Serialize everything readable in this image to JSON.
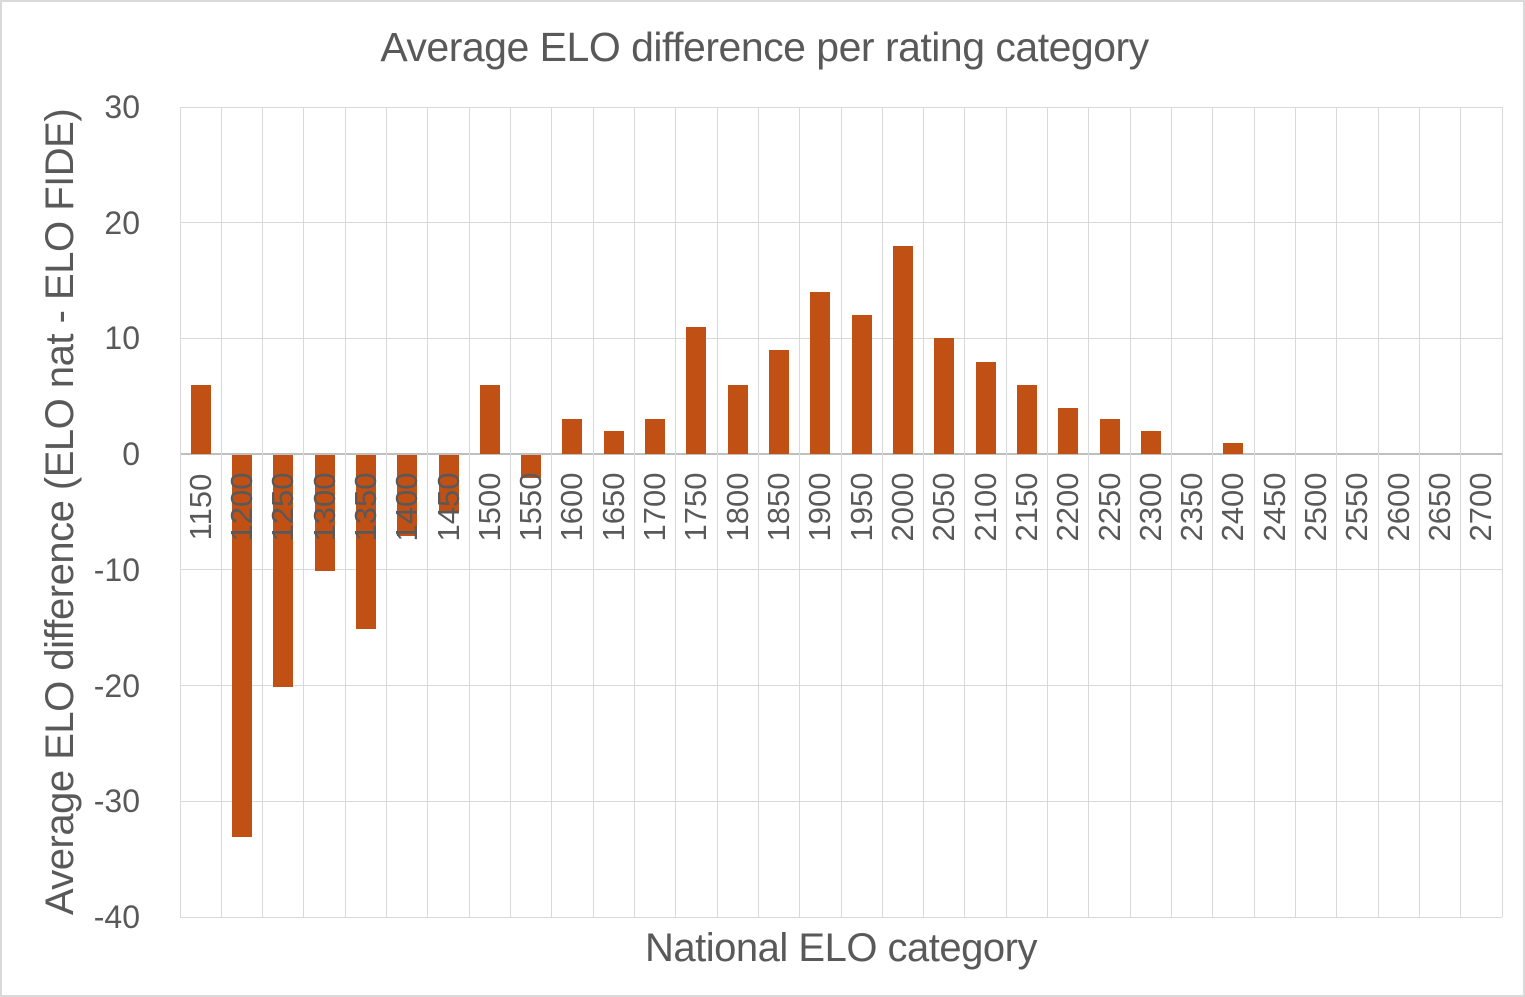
{
  "chart_data": {
    "type": "bar",
    "title": "Average ELO difference per rating category",
    "xlabel": "National ELO category",
    "ylabel": "Average ELO difference (ELO nat - ELO FIDE)",
    "categories": [
      "1150",
      "1200",
      "1250",
      "1300",
      "1350",
      "1400",
      "1450",
      "1500",
      "1550",
      "1600",
      "1650",
      "1700",
      "1750",
      "1800",
      "1850",
      "1900",
      "1950",
      "2000",
      "2050",
      "2100",
      "2150",
      "2200",
      "2250",
      "2300",
      "2350",
      "2400",
      "2450",
      "2500",
      "2550",
      "2600",
      "2650",
      "2700"
    ],
    "values": [
      6,
      -33,
      -20,
      -10,
      -15,
      -7,
      -5,
      6,
      -2,
      3,
      2,
      3,
      11,
      6,
      9,
      14,
      12,
      18,
      10,
      8,
      6,
      4,
      3,
      2,
      0,
      1,
      0,
      0,
      0,
      0,
      0,
      0
    ],
    "ylim": [
      -40,
      30
    ],
    "yticks": [
      30,
      20,
      10,
      0,
      -10,
      -20,
      -30,
      -40
    ],
    "grid": true,
    "legend": false,
    "colors": {
      "bar": "#C15015",
      "gridline": "#D9D9D9",
      "axis_line": "#BFBFBF",
      "text": "#595959",
      "border": "#D9D9D9",
      "background": "#FFFFFF"
    }
  }
}
